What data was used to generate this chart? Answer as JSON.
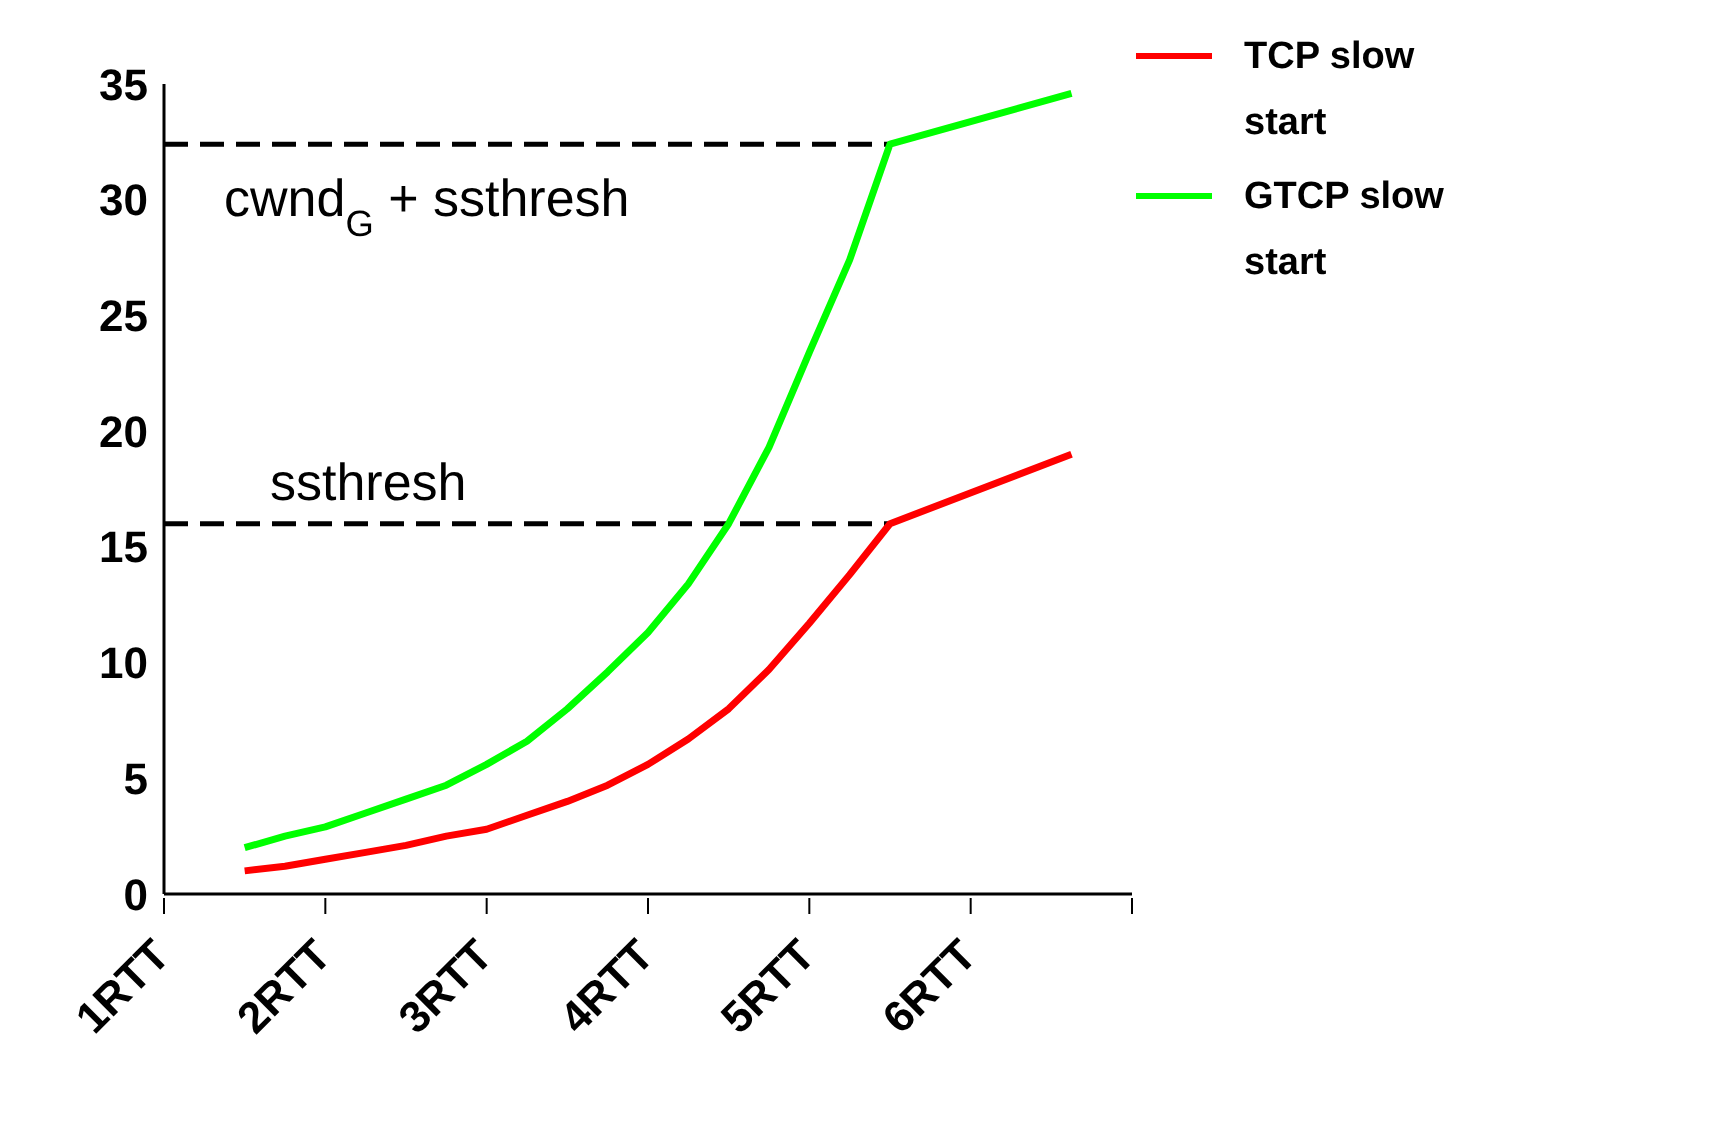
{
  "chart_data": {
    "type": "line",
    "categories": [
      "1RTT",
      null,
      null,
      null,
      null,
      null,
      null,
      null,
      "2RTT",
      null,
      null,
      null,
      null,
      null,
      null,
      null,
      "3RTT",
      null,
      null,
      null,
      null,
      null,
      null,
      null,
      "4RTT",
      null,
      null,
      null,
      null,
      null,
      null,
      null,
      "5RTT",
      null,
      null,
      null,
      null,
      null,
      null,
      null,
      "6RTT",
      null,
      null,
      null,
      null,
      null,
      null,
      null,
      null
    ],
    "series": [
      {
        "name": "TCP slow start",
        "color": "#ff0000",
        "values": [
          null,
          null,
          null,
          null,
          1,
          null,
          1.2,
          null,
          1.5,
          null,
          1.8,
          null,
          2.1,
          null,
          2.5,
          null,
          2.8,
          null,
          3.4,
          null,
          4,
          null,
          4.7,
          null,
          5.6,
          null,
          6.7,
          null,
          8,
          null,
          9.7,
          null,
          11.7,
          null,
          13.8,
          null,
          16,
          null,
          null,
          null,
          null,
          null,
          null,
          null,
          null,
          19,
          null,
          null,
          null
        ]
      },
      {
        "name": "GTCP slow start",
        "color": "#00ff00",
        "values": [
          null,
          null,
          null,
          null,
          2,
          null,
          2.5,
          null,
          2.9,
          null,
          3.5,
          null,
          4.1,
          null,
          4.7,
          null,
          5.6,
          null,
          6.6,
          null,
          8,
          null,
          9.6,
          null,
          11.3,
          null,
          13.4,
          null,
          16,
          null,
          19.3,
          null,
          23.4,
          null,
          27.4,
          null,
          32.4,
          null,
          null,
          null,
          null,
          null,
          null,
          null,
          null,
          34.6,
          null,
          null,
          null
        ]
      }
    ],
    "ylim": [
      0,
      35
    ],
    "yticks": [
      0,
      5,
      10,
      15,
      20,
      25,
      30,
      35
    ],
    "ref_lines": [
      {
        "axis": "y",
        "value": 32.4,
        "label": "cwnd$_{G}$ + ssthresh",
        "color": "#000000",
        "line_style": "dashed"
      },
      {
        "axis": "y",
        "value": 16,
        "label": "ssthresh",
        "color": "#000000",
        "line_style": "dashed"
      }
    ],
    "grid": false,
    "legend": "top right",
    "marker": "none",
    "line_style": "solid"
  }
}
